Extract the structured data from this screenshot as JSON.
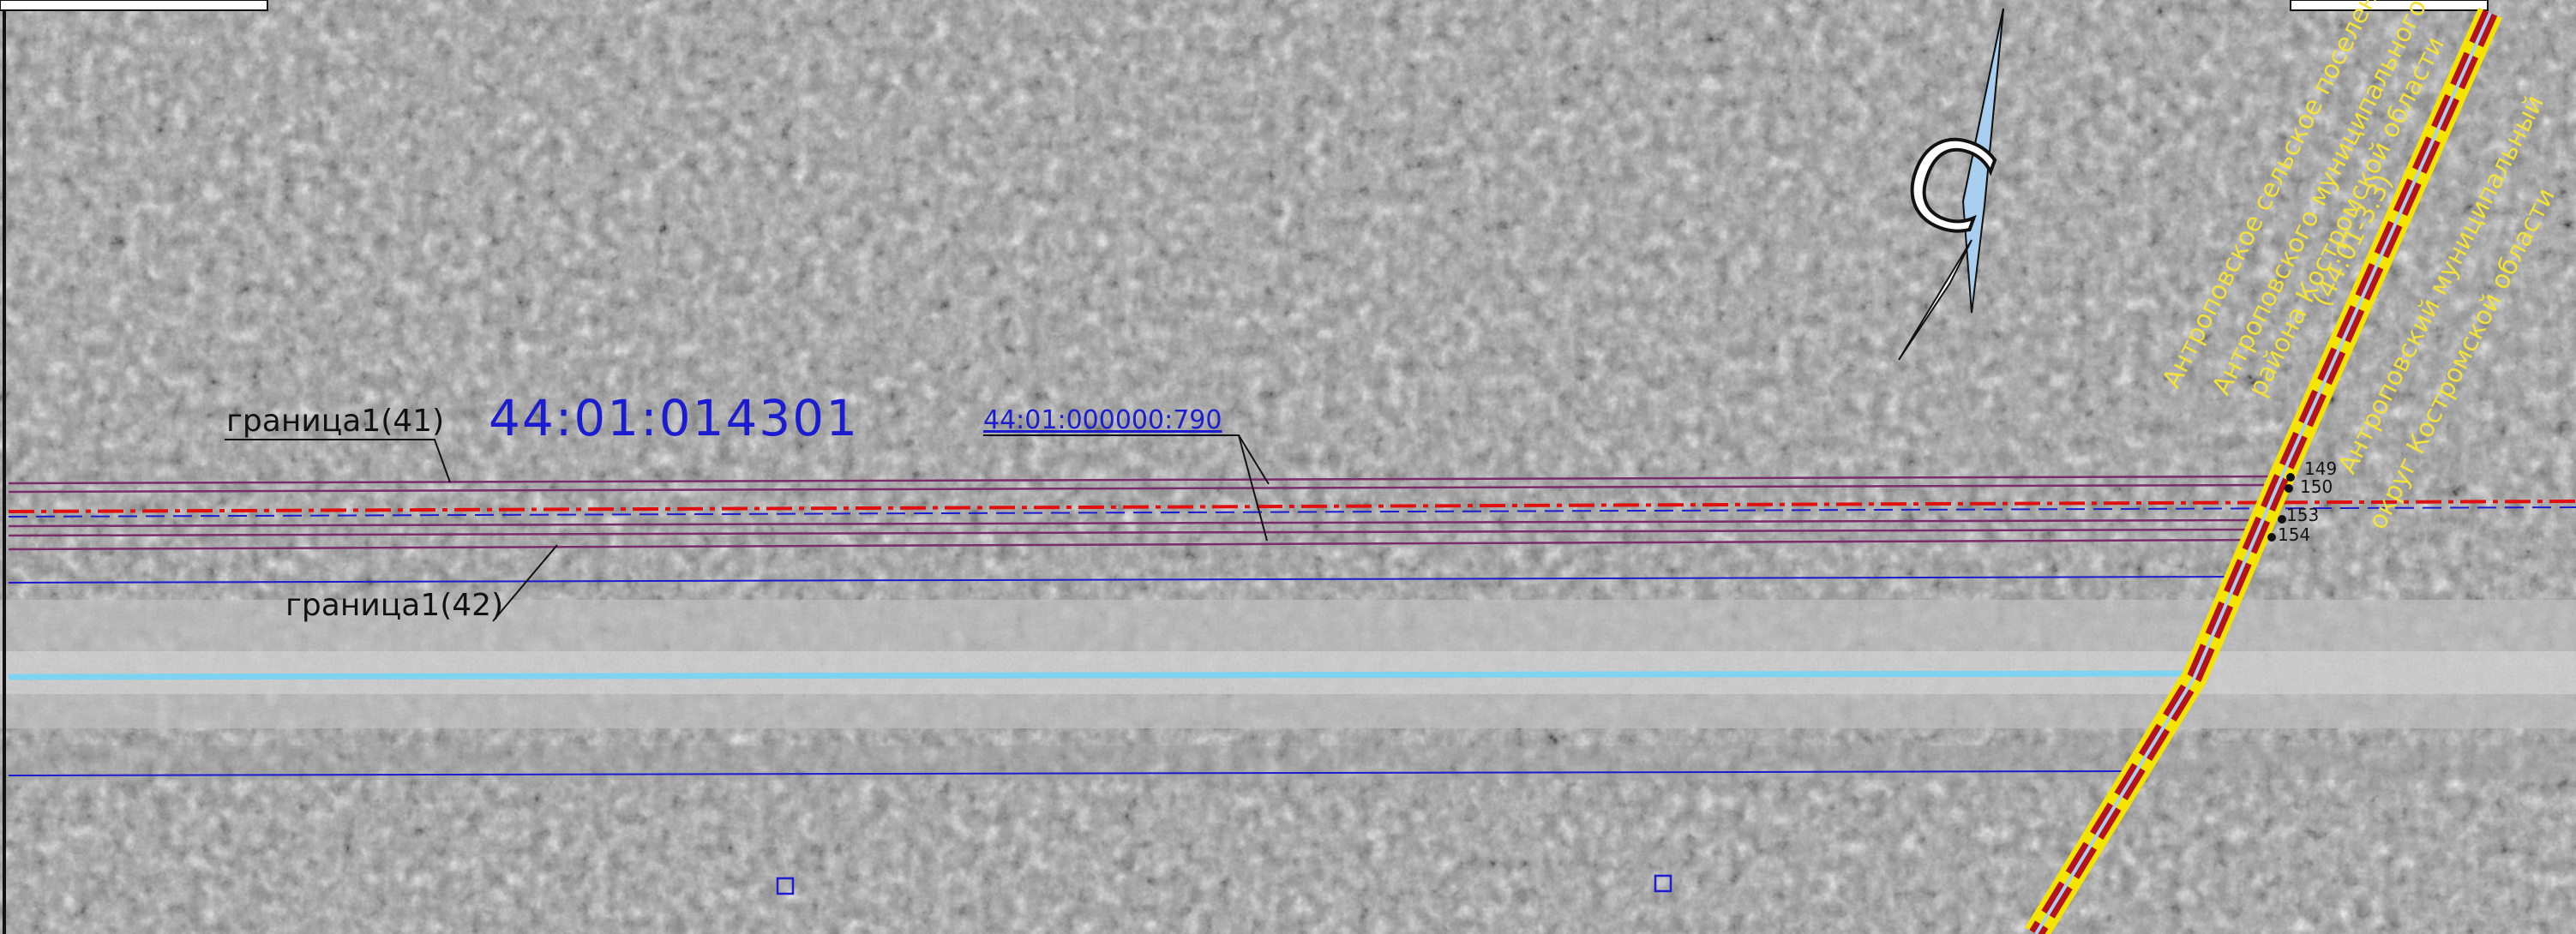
{
  "labels": {
    "parcel_number": "44:01:014301",
    "cadastral_link": "44:01:000000:790",
    "boundary_41": "граница1(41)",
    "boundary_42": "граница1(42)",
    "compass_letter": "С",
    "settlement_line1": "Антроповское сельское поселение",
    "settlement_line2": "Антроповского муниципального",
    "settlement_line3": "района Костромской области",
    "settlement_line4": "(44:01-3.3)",
    "district_line1": "Антроповский муниципальный",
    "district_line2": "округ Костромской области",
    "pt_149": "149",
    "pt_150": "150",
    "pt_153": "153",
    "pt_154": "154"
  },
  "colors": {
    "boundary_purple": "#7a2d6a",
    "line_blue": "#1b1bd0",
    "road_cyan": "#7dd3f0",
    "red_dash": "#e01010",
    "yellow_label": "#f2e23a",
    "strip_red": "#b5121b",
    "strip_yellow": "#f5e400",
    "arrow_blue": "#a9cff0"
  }
}
